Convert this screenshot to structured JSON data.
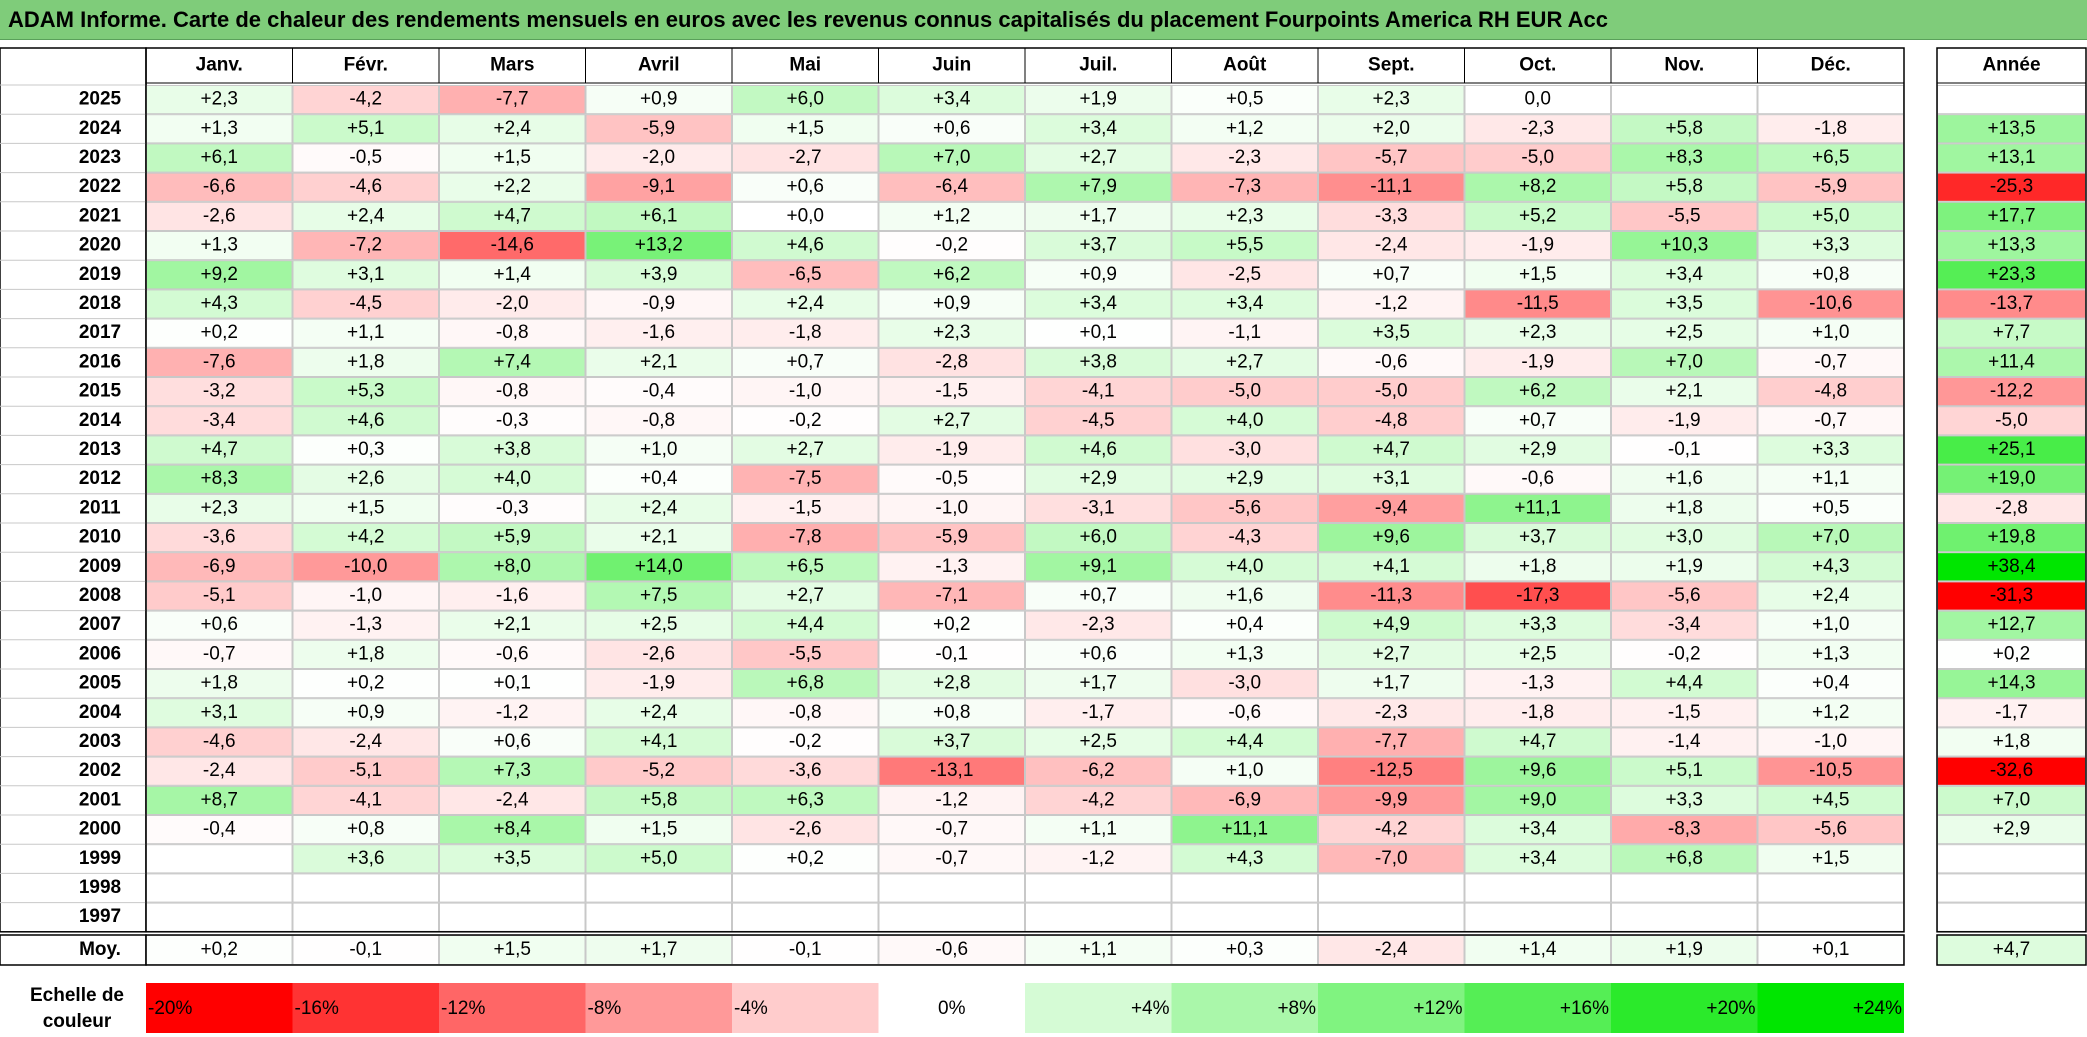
{
  "title": "ADAM Informe. Carte de chaleur des rendements mensuels en euros avec les revenus connus capitalisés du placement Fourpoints America RH EUR Acc",
  "chart_data": {
    "type": "heatmap",
    "title": "ADAM Informe. Carte de chaleur des rendements mensuels en euros avec les revenus connus capitalisés du placement Fourpoints America RH EUR Acc",
    "columns": [
      "Janv.",
      "Févr.",
      "Mars",
      "Avril",
      "Mai",
      "Juin",
      "Juil.",
      "Août",
      "Sept.",
      "Oct.",
      "Nov.",
      "Déc."
    ],
    "year_header": "Année",
    "rows": [
      {
        "year": "2025",
        "values": [
          "+2,3",
          "-4,2",
          "-7,7",
          "+0,9",
          "+6,0",
          "+3,4",
          "+1,9",
          "+0,5",
          "+2,3",
          "0,0",
          "",
          ""
        ],
        "annual": ""
      },
      {
        "year": "2024",
        "values": [
          "+1,3",
          "+5,1",
          "+2,4",
          "-5,9",
          "+1,5",
          "+0,6",
          "+3,4",
          "+1,2",
          "+2,0",
          "-2,3",
          "+5,8",
          "-1,8"
        ],
        "annual": "+13,5"
      },
      {
        "year": "2023",
        "values": [
          "+6,1",
          "-0,5",
          "+1,5",
          "-2,0",
          "-2,7",
          "+7,0",
          "+2,7",
          "-2,3",
          "-5,7",
          "-5,0",
          "+8,3",
          "+6,5"
        ],
        "annual": "+13,1"
      },
      {
        "year": "2022",
        "values": [
          "-6,6",
          "-4,6",
          "+2,2",
          "-9,1",
          "+0,6",
          "-6,4",
          "+7,9",
          "-7,3",
          "-11,1",
          "+8,2",
          "+5,8",
          "-5,9"
        ],
        "annual": "-25,3"
      },
      {
        "year": "2021",
        "values": [
          "-2,6",
          "+2,4",
          "+4,7",
          "+6,1",
          "+0,0",
          "+1,2",
          "+1,7",
          "+2,3",
          "-3,3",
          "+5,2",
          "-5,5",
          "+5,0"
        ],
        "annual": "+17,7"
      },
      {
        "year": "2020",
        "values": [
          "+1,3",
          "-7,2",
          "-14,6",
          "+13,2",
          "+4,6",
          "-0,2",
          "+3,7",
          "+5,5",
          "-2,4",
          "-1,9",
          "+10,3",
          "+3,3"
        ],
        "annual": "+13,3"
      },
      {
        "year": "2019",
        "values": [
          "+9,2",
          "+3,1",
          "+1,4",
          "+3,9",
          "-6,5",
          "+6,2",
          "+0,9",
          "-2,5",
          "+0,7",
          "+1,5",
          "+3,4",
          "+0,8"
        ],
        "annual": "+23,3"
      },
      {
        "year": "2018",
        "values": [
          "+4,3",
          "-4,5",
          "-2,0",
          "-0,9",
          "+2,4",
          "+0,9",
          "+3,4",
          "+3,4",
          "-1,2",
          "-11,5",
          "+3,5",
          "-10,6"
        ],
        "annual": "-13,7"
      },
      {
        "year": "2017",
        "values": [
          "+0,2",
          "+1,1",
          "-0,8",
          "-1,6",
          "-1,8",
          "+2,3",
          "+0,1",
          "-1,1",
          "+3,5",
          "+2,3",
          "+2,5",
          "+1,0"
        ],
        "annual": "+7,7"
      },
      {
        "year": "2016",
        "values": [
          "-7,6",
          "+1,8",
          "+7,4",
          "+2,1",
          "+0,7",
          "-2,8",
          "+3,8",
          "+2,7",
          "-0,6",
          "-1,9",
          "+7,0",
          "-0,7"
        ],
        "annual": "+11,4"
      },
      {
        "year": "2015",
        "values": [
          "-3,2",
          "+5,3",
          "-0,8",
          "-0,4",
          "-1,0",
          "-1,5",
          "-4,1",
          "-5,0",
          "-5,0",
          "+6,2",
          "+2,1",
          "-4,8"
        ],
        "annual": "-12,2"
      },
      {
        "year": "2014",
        "values": [
          "-3,4",
          "+4,6",
          "-0,3",
          "-0,8",
          "-0,2",
          "+2,7",
          "-4,5",
          "+4,0",
          "-4,8",
          "+0,7",
          "-1,9",
          "-0,7"
        ],
        "annual": "-5,0"
      },
      {
        "year": "2013",
        "values": [
          "+4,7",
          "+0,3",
          "+3,8",
          "+1,0",
          "+2,7",
          "-1,9",
          "+4,6",
          "-3,0",
          "+4,7",
          "+2,9",
          "-0,1",
          "+3,3"
        ],
        "annual": "+25,1"
      },
      {
        "year": "2012",
        "values": [
          "+8,3",
          "+2,6",
          "+4,0",
          "+0,4",
          "-7,5",
          "-0,5",
          "+2,9",
          "+2,9",
          "+3,1",
          "-0,6",
          "+1,6",
          "+1,1"
        ],
        "annual": "+19,0"
      },
      {
        "year": "2011",
        "values": [
          "+2,3",
          "+1,5",
          "-0,3",
          "+2,4",
          "-1,5",
          "-1,0",
          "-3,1",
          "-5,6",
          "-9,4",
          "+11,1",
          "+1,8",
          "+0,5"
        ],
        "annual": "-2,8"
      },
      {
        "year": "2010",
        "values": [
          "-3,6",
          "+4,2",
          "+5,9",
          "+2,1",
          "-7,8",
          "-5,9",
          "+6,0",
          "-4,3",
          "+9,6",
          "+3,7",
          "+3,0",
          "+7,0"
        ],
        "annual": "+19,8"
      },
      {
        "year": "2009",
        "values": [
          "-6,9",
          "-10,0",
          "+8,0",
          "+14,0",
          "+6,5",
          "-1,3",
          "+9,1",
          "+4,0",
          "+4,1",
          "+1,8",
          "+1,9",
          "+4,3"
        ],
        "annual": "+38,4"
      },
      {
        "year": "2008",
        "values": [
          "-5,1",
          "-1,0",
          "-1,6",
          "+7,5",
          "+2,7",
          "-7,1",
          "+0,7",
          "+1,6",
          "-11,3",
          "-17,3",
          "-5,6",
          "+2,4"
        ],
        "annual": "-31,3"
      },
      {
        "year": "2007",
        "values": [
          "+0,6",
          "-1,3",
          "+2,1",
          "+2,5",
          "+4,4",
          "+0,2",
          "-2,3",
          "+0,4",
          "+4,9",
          "+3,3",
          "-3,4",
          "+1,0"
        ],
        "annual": "+12,7"
      },
      {
        "year": "2006",
        "values": [
          "-0,7",
          "+1,8",
          "-0,6",
          "-2,6",
          "-5,5",
          "-0,1",
          "+0,6",
          "+1,3",
          "+2,7",
          "+2,5",
          "-0,2",
          "+1,3"
        ],
        "annual": "+0,2"
      },
      {
        "year": "2005",
        "values": [
          "+1,8",
          "+0,2",
          "+0,1",
          "-1,9",
          "+6,8",
          "+2,8",
          "+1,7",
          "-3,0",
          "+1,7",
          "-1,3",
          "+4,4",
          "+0,4"
        ],
        "annual": "+14,3"
      },
      {
        "year": "2004",
        "values": [
          "+3,1",
          "+0,9",
          "-1,2",
          "+2,4",
          "-0,8",
          "+0,8",
          "-1,7",
          "-0,6",
          "-2,3",
          "-1,8",
          "-1,5",
          "+1,2"
        ],
        "annual": "-1,7"
      },
      {
        "year": "2003",
        "values": [
          "-4,6",
          "-2,4",
          "+0,6",
          "+4,1",
          "-0,2",
          "+3,7",
          "+2,5",
          "+4,4",
          "-7,7",
          "+4,7",
          "-1,4",
          "-1,0"
        ],
        "annual": "+1,8"
      },
      {
        "year": "2002",
        "values": [
          "-2,4",
          "-5,1",
          "+7,3",
          "-5,2",
          "-3,6",
          "-13,1",
          "-6,2",
          "+1,0",
          "-12,5",
          "+9,6",
          "+5,1",
          "-10,5"
        ],
        "annual": "-32,6"
      },
      {
        "year": "2001",
        "values": [
          "+8,7",
          "-4,1",
          "-2,4",
          "+5,8",
          "+6,3",
          "-1,2",
          "-4,2",
          "-6,9",
          "-9,9",
          "+9,0",
          "+3,3",
          "+4,5"
        ],
        "annual": "+7,0"
      },
      {
        "year": "2000",
        "values": [
          "-0,4",
          "+0,8",
          "+8,4",
          "+1,5",
          "-2,6",
          "-0,7",
          "+1,1",
          "+11,1",
          "-4,2",
          "+3,4",
          "-8,3",
          "-5,6"
        ],
        "annual": "+2,9"
      },
      {
        "year": "1999",
        "values": [
          "",
          "+3,6",
          "+3,5",
          "+5,0",
          "+0,2",
          "-0,7",
          "-1,2",
          "+4,3",
          "-7,0",
          "+3,4",
          "+6,8",
          "+1,5"
        ],
        "annual": ""
      },
      {
        "year": "1998",
        "values": [
          "",
          "",
          "",
          "",
          "",
          "",
          "",
          "",
          "",
          "",
          "",
          ""
        ],
        "annual": ""
      },
      {
        "year": "1997",
        "values": [
          "",
          "",
          "",
          "",
          "",
          "",
          "",
          "",
          "",
          "",
          "",
          ""
        ],
        "annual": ""
      }
    ],
    "average": {
      "label": "Moy.",
      "values": [
        "+0,2",
        "-0,1",
        "+1,5",
        "+1,7",
        "-0,1",
        "-0,6",
        "+1,1",
        "+0,3",
        "-2,4",
        "+1,4",
        "+1,9",
        "+0,1"
      ],
      "annual": "+4,7"
    },
    "scale": {
      "label_line1": "Echelle de",
      "label_line2": "couleur",
      "steps": [
        "-20%",
        "-16%",
        "-12%",
        "-8%",
        "-4%",
        "0%",
        "+4%",
        "+8%",
        "+12%",
        "+16%",
        "+20%",
        "+24%"
      ],
      "step_values": [
        -20,
        -16,
        -12,
        -8,
        -4,
        0,
        4,
        8,
        12,
        16,
        20,
        24
      ]
    },
    "colors": {
      "negative_max": "#ff0000",
      "positive_max": "#00e600",
      "neutral": "#ffffff",
      "title_bar": "#7fcc7a"
    }
  }
}
